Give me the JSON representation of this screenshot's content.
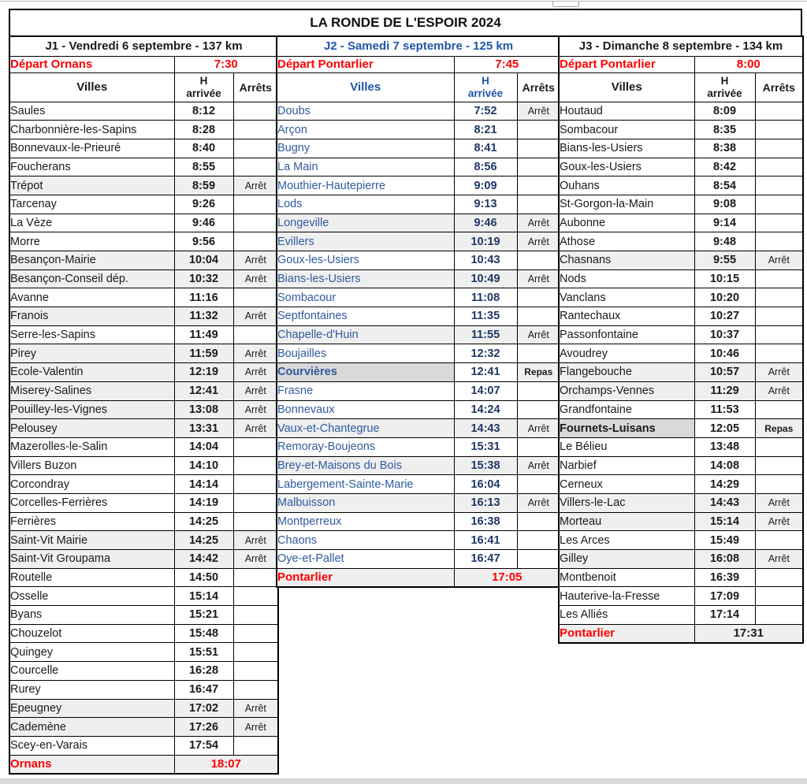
{
  "title": "LA RONDE DE L'ESPOIR 2024",
  "colors": {
    "red": "#FF0000",
    "black": "#1A1A1A",
    "blue_header": "#1F55A8",
    "blue_name": "#2E5B9F",
    "blue_time": "#1F3864",
    "shade_light": "#EFEFEF",
    "shade_dark": "#D9D9D9"
  },
  "days": [
    {
      "header": "J1 - Vendredi 6 septembre - 137 km",
      "theme": "black",
      "depart_label": "Départ Ornans",
      "depart_time": "7:30",
      "columns": {
        "villes": "Villes",
        "h_line1": "H",
        "h_line2": "arrivée",
        "arrets": "Arrêts"
      },
      "rows": [
        {
          "name": "Saules",
          "time": "8:12",
          "note": "",
          "shade": ""
        },
        {
          "name": "Charbonnière-les-Sapins",
          "time": "8:28",
          "note": "",
          "shade": ""
        },
        {
          "name": "Bonnevaux-le-Prieuré",
          "time": "8:40",
          "note": "",
          "shade": ""
        },
        {
          "name": "Foucherans",
          "time": "8:55",
          "note": "",
          "shade": ""
        },
        {
          "name": "Trépot",
          "time": "8:59",
          "note": "Arrêt",
          "shade": "row"
        },
        {
          "name": "Tarcenay",
          "time": "9:26",
          "note": "",
          "shade": ""
        },
        {
          "name": "La Vèze",
          "time": "9:46",
          "note": "",
          "shade": ""
        },
        {
          "name": "Morre",
          "time": "9:56",
          "note": "",
          "shade": ""
        },
        {
          "name": "Besançon-Mairie",
          "time": "10:04",
          "note": "Arrêt",
          "shade": "row"
        },
        {
          "name": "Besançon-Conseil dép.",
          "time": "10:32",
          "note": "Arrêt",
          "shade": "row"
        },
        {
          "name": "Avanne",
          "time": "11:16",
          "note": "",
          "shade": ""
        },
        {
          "name": "Franois",
          "time": "11:32",
          "note": "Arrêt",
          "shade": "row"
        },
        {
          "name": "Serre-les-Sapins",
          "time": "11:49",
          "note": "",
          "shade": ""
        },
        {
          "name": "Pirey",
          "time": "11:59",
          "note": "Arrêt",
          "shade": "row"
        },
        {
          "name": "Ecole-Valentin",
          "time": "12:19",
          "note": "Arrêt",
          "shade": "row"
        },
        {
          "name": "Miserey-Salines",
          "time": "12:41",
          "note": "Arrêt",
          "shade": "row"
        },
        {
          "name": "Pouilley-les-Vignes",
          "time": "13:08",
          "note": "Arrêt",
          "shade": "row"
        },
        {
          "name": "Pelousey",
          "time": "13:31",
          "note": "Arrêt",
          "shade": "row"
        },
        {
          "name": "Mazerolles-le-Salin",
          "time": "14:04",
          "note": "",
          "shade": ""
        },
        {
          "name": "Villers Buzon",
          "time": "14:10",
          "note": "",
          "shade": ""
        },
        {
          "name": "Corcondray",
          "time": "14:14",
          "note": "",
          "shade": ""
        },
        {
          "name": "Corcelles-Ferrières",
          "time": "14:19",
          "note": "",
          "shade": ""
        },
        {
          "name": "Ferrières",
          "time": "14:25",
          "note": "",
          "shade": ""
        },
        {
          "name": "Saint-Vit Mairie",
          "time": "14:25",
          "note": "Arrêt",
          "shade": "row"
        },
        {
          "name": "Saint-Vit Groupama",
          "time": "14:42",
          "note": "Arrêt",
          "shade": "row"
        },
        {
          "name": "Routelle",
          "time": "14:50",
          "note": "",
          "shade": ""
        },
        {
          "name": "Osselle",
          "time": "15:14",
          "note": "",
          "shade": ""
        },
        {
          "name": "Byans",
          "time": "15:21",
          "note": "",
          "shade": ""
        },
        {
          "name": "Chouzelot",
          "time": "15:48",
          "note": "",
          "shade": ""
        },
        {
          "name": "Quingey",
          "time": "15:51",
          "note": "",
          "shade": ""
        },
        {
          "name": "Courcelle",
          "time": "16:28",
          "note": "",
          "shade": ""
        },
        {
          "name": "Rurey",
          "time": "16:47",
          "note": "",
          "shade": ""
        },
        {
          "name": "Epeugney",
          "time": "17:02",
          "note": "Arrêt",
          "shade": "row"
        },
        {
          "name": "Cademène",
          "time": "17:26",
          "note": "Arrêt",
          "shade": "row"
        },
        {
          "name": "Scey-en-Varais",
          "time": "17:54",
          "note": "",
          "shade": ""
        }
      ],
      "final": {
        "name": "Ornans",
        "time": "18:07",
        "time_red": true
      }
    },
    {
      "header": "J2 - Samedi 7 septembre - 125 km",
      "theme": "blue",
      "depart_label": "Départ Pontarlier",
      "depart_time": "7:45",
      "columns": {
        "villes": "Villes",
        "h_line1": "H",
        "h_line2": "arrivée",
        "arrets": "Arrêts"
      },
      "rows": [
        {
          "name": "Doubs",
          "time": "7:52",
          "note": "Arrêt",
          "shade": "stopcell"
        },
        {
          "name": "Arçon",
          "time": "8:21",
          "note": "",
          "shade": ""
        },
        {
          "name": "Bugny",
          "time": "8:41",
          "note": "",
          "shade": ""
        },
        {
          "name": "La Main",
          "time": "8:56",
          "note": "",
          "shade": ""
        },
        {
          "name": "Mouthier-Hautepierre",
          "time": "9:09",
          "note": "",
          "shade": ""
        },
        {
          "name": "Lods",
          "time": "9:13",
          "note": "",
          "shade": ""
        },
        {
          "name": "Longeville",
          "time": "9:46",
          "note": "Arrêt",
          "shade": "row"
        },
        {
          "name": "Evillers",
          "time": "10:19",
          "note": "Arrêt",
          "shade": "row"
        },
        {
          "name": "Goux-les-Usiers",
          "time": "10:43",
          "note": "",
          "shade": ""
        },
        {
          "name": "Bians-les-Usiers",
          "time": "10:49",
          "note": "Arrêt",
          "shade": "row"
        },
        {
          "name": "Sombacour",
          "time": "11:08",
          "note": "",
          "shade": ""
        },
        {
          "name": "Septfontaines",
          "time": "11:35",
          "note": "",
          "shade": ""
        },
        {
          "name": "Chapelle-d'Huin",
          "time": "11:55",
          "note": "Arrêt",
          "shade": "row"
        },
        {
          "name": "Boujailles",
          "time": "12:32",
          "note": "",
          "shade": ""
        },
        {
          "name": "Courvières",
          "time": "12:41",
          "note": "Repas",
          "shade": "repas"
        },
        {
          "name": "Frasne",
          "time": "14:07",
          "note": "",
          "shade": ""
        },
        {
          "name": "Bonnevaux",
          "time": "14:24",
          "note": "",
          "shade": ""
        },
        {
          "name": "Vaux-et-Chantegrue",
          "time": "14:43",
          "note": "Arrêt",
          "shade": "row"
        },
        {
          "name": "Remoray-Boujeons",
          "time": "15:31",
          "note": "",
          "shade": ""
        },
        {
          "name": "Brey-et-Maisons du Bois",
          "time": "15:38",
          "note": "Arrêt",
          "shade": "row"
        },
        {
          "name": "Labergement-Sainte-Marie",
          "time": "16:04",
          "note": "",
          "shade": ""
        },
        {
          "name": "Malbuisson",
          "time": "16:13",
          "note": "Arrêt",
          "shade": "row"
        },
        {
          "name": "Montperreux",
          "time": "16:38",
          "note": "",
          "shade": ""
        },
        {
          "name": "Chaons",
          "time": "16:41",
          "note": "",
          "shade": ""
        },
        {
          "name": "Oye-et-Pallet",
          "time": "16:47",
          "note": "",
          "shade": ""
        }
      ],
      "final": {
        "name": "Pontarlier",
        "time": "17:05",
        "time_red": true
      }
    },
    {
      "header": "J3 - Dimanche 8 septembre - 134 km",
      "theme": "black",
      "depart_label": "Départ Pontarlier",
      "depart_time": "8:00",
      "columns": {
        "villes": "Villes",
        "h_line1": "H",
        "h_line2": "arrivée",
        "arrets": "Arrêts"
      },
      "rows": [
        {
          "name": "Houtaud",
          "time": "8:09",
          "note": "",
          "shade": ""
        },
        {
          "name": "Sombacour",
          "time": "8:35",
          "note": "",
          "shade": ""
        },
        {
          "name": "Bians-les-Usiers",
          "time": "8:38",
          "note": "",
          "shade": ""
        },
        {
          "name": "Goux-les-Usiers",
          "time": "8:42",
          "note": "",
          "shade": ""
        },
        {
          "name": "Ouhans",
          "time": "8:54",
          "note": "",
          "shade": ""
        },
        {
          "name": "St-Gorgon-la-Main",
          "time": "9:08",
          "note": "",
          "shade": ""
        },
        {
          "name": "Aubonne",
          "time": "9:14",
          "note": "",
          "shade": ""
        },
        {
          "name": "Athose",
          "time": "9:48",
          "note": "",
          "shade": ""
        },
        {
          "name": "Chasnans",
          "time": "9:55",
          "note": "Arrêt",
          "shade": "row"
        },
        {
          "name": "Nods",
          "time": "10:15",
          "note": "",
          "shade": ""
        },
        {
          "name": "Vanclans",
          "time": "10:20",
          "note": "",
          "shade": ""
        },
        {
          "name": "Rantechaux",
          "time": "10:27",
          "note": "",
          "shade": ""
        },
        {
          "name": "Passonfontaine",
          "time": "10:37",
          "note": "",
          "shade": ""
        },
        {
          "name": "Avoudrey",
          "time": "10:46",
          "note": "",
          "shade": ""
        },
        {
          "name": "Flangebouche",
          "time": "10:57",
          "note": "Arrêt",
          "shade": "row"
        },
        {
          "name": "Orchamps-Vennes",
          "time": "11:29",
          "note": "Arrêt",
          "shade": "row"
        },
        {
          "name": "Grandfontaine",
          "time": "11:53",
          "note": "",
          "shade": ""
        },
        {
          "name": "Fournets-Luisans",
          "time": "12:05",
          "note": "Repas",
          "shade": "repas"
        },
        {
          "name": "Le Bélieu",
          "time": "13:48",
          "note": "",
          "shade": ""
        },
        {
          "name": "Narbief",
          "time": "14:08",
          "note": "",
          "shade": ""
        },
        {
          "name": "Cerneux",
          "time": "14:29",
          "note": "",
          "shade": ""
        },
        {
          "name": "Villers-le-Lac",
          "time": "14:43",
          "note": "Arrêt",
          "shade": "row"
        },
        {
          "name": "Morteau",
          "time": "15:14",
          "note": "Arrêt",
          "shade": "row"
        },
        {
          "name": "Les Arces",
          "time": "15:49",
          "note": "",
          "shade": ""
        },
        {
          "name": "Gilley",
          "time": "16:08",
          "note": "Arrêt",
          "shade": "row"
        },
        {
          "name": "Montbenoit",
          "time": "16:39",
          "note": "",
          "shade": ""
        },
        {
          "name": "Hauterive-la-Fresse",
          "time": "17:09",
          "note": "",
          "shade": ""
        },
        {
          "name": "Les Alliés",
          "time": "17:14",
          "note": "",
          "shade": ""
        }
      ],
      "final": {
        "name": "Pontarlier",
        "time": "17:31",
        "time_red": false
      }
    }
  ]
}
